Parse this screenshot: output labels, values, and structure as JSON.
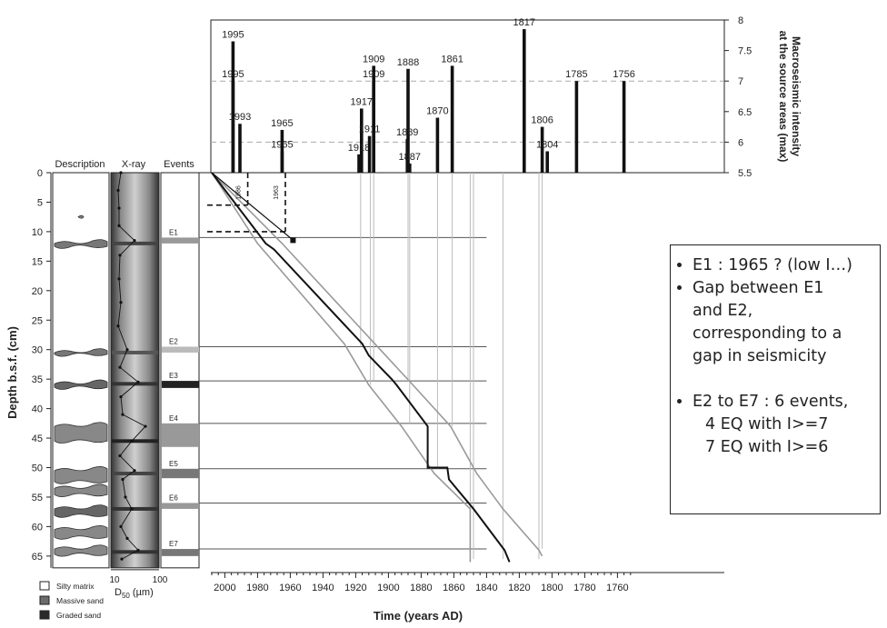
{
  "chart_data": {
    "type": "bar",
    "top_panel": {
      "ylabel_line1": "Macroseismic intensity",
      "ylabel_line2": "at the source areas (max)",
      "ylim": [
        5.5,
        8
      ],
      "yticks": [
        "5.5",
        "6",
        "6.5",
        "7",
        "7.5",
        "8"
      ],
      "dashed_at": [
        6,
        7
      ],
      "earthquakes": [
        {
          "year": 1995,
          "intensity": 7.65,
          "label": "1995"
        },
        {
          "year": 1995,
          "intensity": 7.0,
          "label": "1995"
        },
        {
          "year": 1993,
          "intensity": 6.3,
          "label": "1993"
        },
        {
          "year": 1965,
          "intensity": 6.2,
          "label": "1965"
        },
        {
          "year": 1965,
          "intensity": 5.85,
          "label": "1965"
        },
        {
          "year": 1917,
          "intensity": 6.55,
          "label": "1917"
        },
        {
          "year": 1918,
          "intensity": 5.8,
          "label": "1918"
        },
        {
          "year": 1911,
          "intensity": 6.1,
          "label": "1911"
        },
        {
          "year": 1909,
          "intensity": 7.25,
          "label": "1909"
        },
        {
          "year": 1909,
          "intensity": 7.0,
          "label": "1909"
        },
        {
          "year": 1888,
          "intensity": 7.2,
          "label": "1888"
        },
        {
          "year": 1889,
          "intensity": 6.05,
          "label": "1889"
        },
        {
          "year": 1887,
          "intensity": 5.65,
          "label": "1887"
        },
        {
          "year": 1870,
          "intensity": 6.4,
          "label": "1870"
        },
        {
          "year": 1861,
          "intensity": 7.25,
          "label": "1861"
        },
        {
          "year": 1817,
          "intensity": 7.85,
          "label": "1817"
        },
        {
          "year": 1806,
          "intensity": 6.25,
          "label": "1806"
        },
        {
          "year": 1804,
          "intensity": 5.85,
          "label": "1804"
        },
        {
          "year": 1785,
          "intensity": 7.0,
          "label": "1785"
        },
        {
          "year": 1756,
          "intensity": 7.0,
          "label": "1756"
        }
      ]
    },
    "main_panel": {
      "xlabel": "Time (years AD)",
      "ylabel": "Depth b.s.f. (cm)",
      "xlim": [
        2010,
        1750
      ],
      "xticks": [
        "2000",
        "1980",
        "1960",
        "1940",
        "1920",
        "1900",
        "1880",
        "1860",
        "1840",
        "1820",
        "1800",
        "1780",
        "1760"
      ],
      "ylim": [
        0,
        67
      ],
      "yticks": [
        "0",
        "5",
        "10",
        "15",
        "20",
        "25",
        "30",
        "35",
        "40",
        "45",
        "50",
        "55",
        "60",
        "65"
      ],
      "marker_labels": [
        "1986",
        "1963"
      ],
      "age_model_median": [
        [
          2008,
          0
        ],
        [
          1975,
          12
        ],
        [
          1970,
          13
        ],
        [
          1916,
          29
        ],
        [
          1912,
          31
        ],
        [
          1898,
          35
        ],
        [
          1895,
          36
        ],
        [
          1876,
          43
        ],
        [
          1876,
          50
        ],
        [
          1864,
          50
        ],
        [
          1863,
          52
        ],
        [
          1848,
          57
        ],
        [
          1829,
          64
        ],
        [
          1826,
          66
        ]
      ],
      "age_model_bounds": [
        [
          [
            2008,
            0
          ],
          [
            1965,
            12
          ],
          [
            1905,
            30
          ],
          [
            1885,
            36
          ],
          [
            1862,
            43
          ],
          [
            1846,
            51
          ],
          [
            1830,
            57
          ],
          [
            1808,
            64
          ],
          [
            1806,
            65
          ]
        ],
        [
          [
            2008,
            0
          ],
          [
            1980,
            12
          ],
          [
            1927,
            29
          ],
          [
            1912,
            36
          ],
          [
            1892,
            43
          ],
          [
            1872,
            51
          ],
          [
            1850,
            57
          ],
          [
            1850,
            66
          ]
        ]
      ],
      "events": [
        {
          "name": "E1",
          "depth_top": 11,
          "depth_bottom": 12
        },
        {
          "name": "E2",
          "depth_top": 29.5,
          "depth_bottom": 30.5
        },
        {
          "name": "E3",
          "depth_top": 35.3,
          "depth_bottom": 36.5
        },
        {
          "name": "E4",
          "depth_top": 42.5,
          "depth_bottom": 46.5
        },
        {
          "name": "E5",
          "depth_top": 50.2,
          "depth_bottom": 51.8
        },
        {
          "name": "E6",
          "depth_top": 56,
          "depth_bottom": 57
        },
        {
          "name": "E7",
          "depth_top": 63.8,
          "depth_bottom": 65
        }
      ]
    },
    "column_headers": [
      "Description",
      "X-ray",
      "Events"
    ],
    "d50_axis": {
      "label": "D",
      "subscript": "50",
      "unit": " (µm)",
      "ticks": [
        "10",
        "100"
      ]
    },
    "legend": [
      {
        "label": "Silty matrix",
        "color": "#ffffff"
      },
      {
        "label": "Massive sand",
        "color": "#6b6b6b"
      },
      {
        "label": "Graded sand",
        "color": "#2a2a2a"
      }
    ]
  },
  "annotation_box": {
    "lines": [
      "E1 : 1965 ? (low I…)",
      "Gap between E1",
      "and E2,",
      "corresponding to a",
      "gap in seismicity",
      "E2 to E7 : 6 events,",
      "4 EQ with I>=7",
      "7 EQ with I>=6"
    ]
  }
}
